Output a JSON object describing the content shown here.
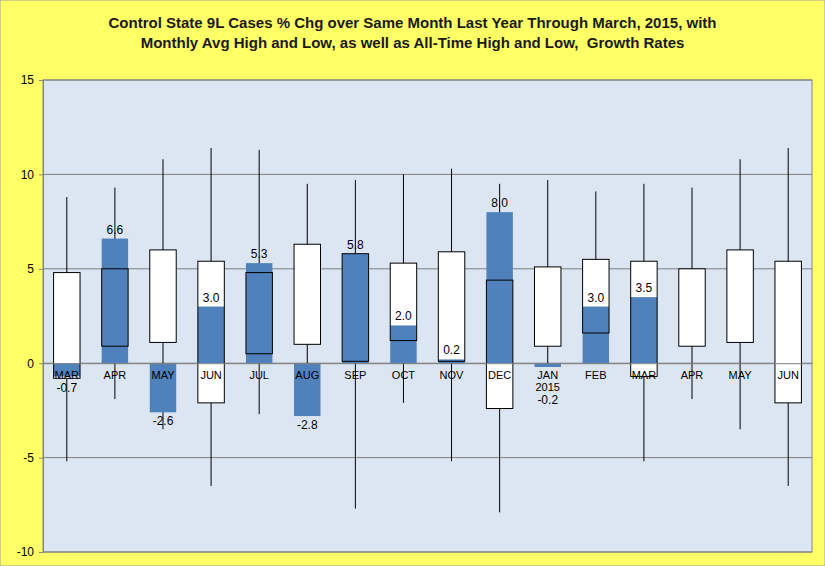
{
  "chart_data": {
    "type": "bar",
    "title": "Control State 9L Cases % Chg over Same Month Last Year Through March, 2015, with\nMonthly Avg High and Low, as well as All-Time High and Low,  Growth Rates",
    "categories": [
      "MAR",
      "APR",
      "MAY",
      "JUN",
      "JUL",
      "AUG",
      "SEP",
      "OCT",
      "NOV",
      "DEC",
      "JAN\n2015",
      "FEB",
      "MAR",
      "APR",
      "MAY",
      "JUN"
    ],
    "values": [
      -0.7,
      6.6,
      -2.6,
      3.0,
      5.3,
      -2.8,
      5.8,
      2.0,
      0.2,
      8.0,
      -0.2,
      3.0,
      3.5,
      null,
      null,
      null
    ],
    "value_labels": [
      "-0.7",
      "6.6",
      "-2.6",
      "3.0",
      "5.3",
      "-2.8",
      "5.8",
      "2.0",
      "0.2",
      "8.0",
      "-0.2",
      "3.0",
      "3.5",
      null,
      null,
      null
    ],
    "avg_high": [
      4.8,
      5.0,
      6.0,
      5.4,
      4.8,
      6.3,
      5.8,
      5.3,
      5.9,
      4.4,
      5.1,
      5.5,
      5.4,
      5.0,
      6.0,
      5.4
    ],
    "avg_low": [
      -0.8,
      0.9,
      1.1,
      -2.1,
      0.5,
      1.0,
      0.1,
      1.2,
      0.1,
      -2.4,
      0.9,
      1.6,
      -0.7,
      0.9,
      1.1,
      -2.1
    ],
    "all_time_high": [
      8.8,
      9.3,
      10.8,
      11.4,
      11.3,
      9.5,
      9.7,
      10.0,
      10.3,
      9.5,
      9.7,
      9.1,
      9.5,
      9.3,
      10.8,
      11.4
    ],
    "all_time_low": [
      -5.2,
      -1.9,
      -3.5,
      -6.5,
      -2.7,
      -2.8,
      -7.7,
      -2.1,
      -5.2,
      -7.9,
      -0.2,
      0.0,
      -5.2,
      -1.9,
      -3.5,
      -6.5
    ],
    "color": "#4F81BD",
    "ylim": [
      -10,
      15
    ],
    "yticks": [
      -10,
      -5,
      0,
      5,
      10,
      15
    ],
    "grid": true,
    "data_labels": true
  }
}
